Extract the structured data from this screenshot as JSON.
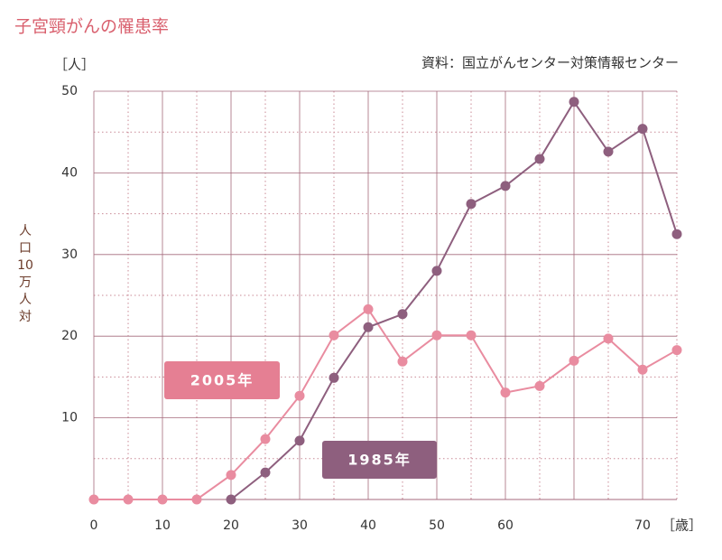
{
  "chart_data": {
    "type": "line",
    "title": "子宮頸がんの罹患率",
    "source": "資料：国立がんセンター対策情報センター",
    "y_unit": "［人］",
    "x_unit": "［歳］",
    "y_label_lines": [
      "人",
      "口",
      "10",
      "万",
      "人",
      "対"
    ],
    "categories": [
      "0",
      null,
      "10",
      null,
      "20",
      null,
      "30",
      null,
      "40",
      null,
      "50",
      null,
      "60",
      null,
      null,
      null,
      "70",
      null
    ],
    "ylim": [
      0,
      50
    ],
    "yticks": [
      10,
      20,
      30,
      40,
      50
    ],
    "grid": true,
    "series": [
      {
        "name": "2005年",
        "color": "#e98ca0",
        "values": [
          0,
          0,
          0,
          0,
          3.0,
          7.4,
          12.7,
          20.1,
          23.3,
          16.9,
          20.1,
          20.1,
          13.1,
          13.9,
          17.0,
          19.7,
          15.9,
          18.3
        ]
      },
      {
        "name": "1985年",
        "color": "#8e5f7e",
        "values": [
          null,
          null,
          null,
          null,
          0,
          3.3,
          7.2,
          14.9,
          21.1,
          22.7,
          28.0,
          36.2,
          38.4,
          41.7,
          48.7,
          42.6,
          45.4,
          32.5
        ]
      }
    ]
  }
}
